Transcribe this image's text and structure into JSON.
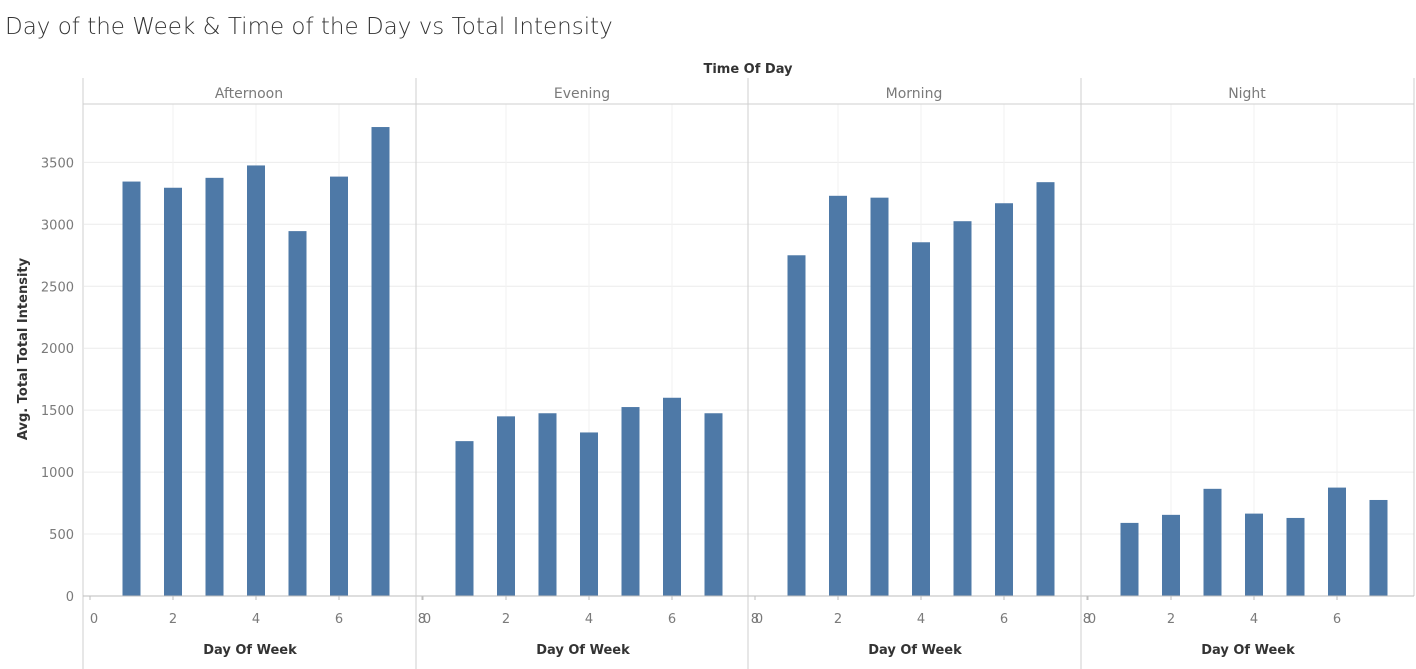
{
  "chart_data": {
    "type": "bar",
    "title": "Day of the Week & Time of the Day vs Total Intensity",
    "column_header": "Time Of Day",
    "xlabel": "Day Of Week",
    "ylabel": "Avg. Total Total Intensity",
    "xlim": [
      0,
      8
    ],
    "ylim": [
      0,
      3900
    ],
    "x_ticks": [
      0,
      2,
      4,
      6,
      8
    ],
    "y_ticks": [
      0,
      500,
      1000,
      1500,
      2000,
      2500,
      3000,
      3500
    ],
    "x": [
      1,
      2,
      3,
      4,
      5,
      6,
      7
    ],
    "color": "#4e79a7",
    "grid": true,
    "panels": [
      {
        "name": "Afternoon",
        "values": [
          3345,
          3295,
          3375,
          3475,
          2945,
          3385,
          3785
        ]
      },
      {
        "name": "Evening",
        "values": [
          1250,
          1450,
          1475,
          1320,
          1525,
          1600,
          1475
        ]
      },
      {
        "name": "Morning",
        "values": [
          2750,
          3230,
          3215,
          2855,
          3025,
          3170,
          3340
        ]
      },
      {
        "name": "Night",
        "values": [
          590,
          655,
          865,
          665,
          630,
          875,
          775
        ]
      }
    ]
  }
}
